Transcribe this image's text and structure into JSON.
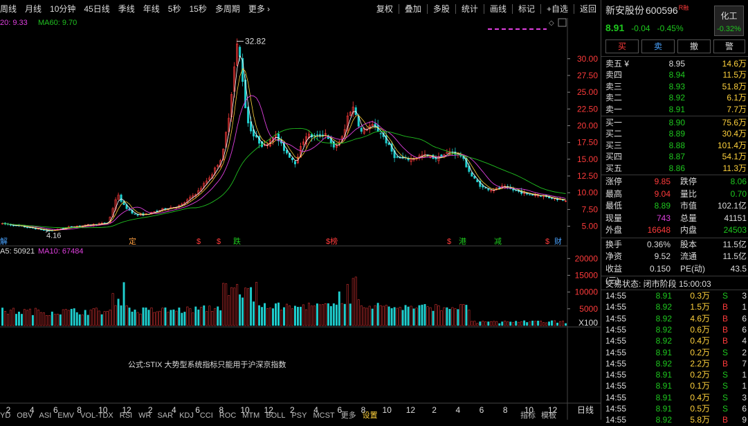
{
  "toolbar": {
    "left": [
      "周线",
      "月线",
      "10分钟",
      "45日线",
      "季线",
      "年线",
      "5秒",
      "15秒",
      "多周期",
      "更多 ›"
    ],
    "right": [
      "复权",
      "叠加",
      "多股",
      "统计",
      "画线",
      "标记",
      "+自选",
      "返回"
    ]
  },
  "chart": {
    "ma_label_main": {
      "ma20": "20: 9.33",
      "ma60": "MA60: 9.70"
    },
    "ma_label_vol": {
      "ma5": "A5: 50921",
      "ma10": "MA10: 67484"
    },
    "high_label": "32.82",
    "low_label": "4.16",
    "price_ticks": [
      "30.00",
      "27.50",
      "25.00",
      "22.50",
      "20.00",
      "17.50",
      "15.00",
      "12.50",
      "10.00",
      "7.50",
      "5.00"
    ],
    "vol_ticks": [
      "20000",
      "15000",
      "10000",
      "5000",
      "X100"
    ],
    "x_ticks": [
      "2",
      "4",
      "6",
      "8",
      "10",
      "12",
      "2",
      "4",
      "6",
      "8",
      "10",
      "12",
      "2",
      "4",
      "6",
      "8",
      "10",
      "12",
      "2",
      "4",
      "6",
      "8",
      "10",
      "12"
    ],
    "x_unit": "日线",
    "events": [
      "定",
      "$",
      "$",
      "跌",
      "$榜",
      "$",
      "港",
      "减",
      "$",
      "财",
      "解"
    ],
    "formula": "公式:STIX 大势型系统指标只能用于沪深京指数",
    "colors": {
      "up": "#ff3b3b",
      "down": "#20d0d0",
      "ma5": "#ffffff",
      "ma10": "#ffd23c",
      "ma20": "#e040e0",
      "ma60": "#20c020"
    }
  },
  "bottom_tabs": [
    "YD",
    "OBV",
    "ASI",
    "EMV",
    "VOL-TDX",
    "RSI",
    "WR",
    "SAR",
    "KDJ",
    "CCI",
    "ROC",
    "MTM",
    "BOLL",
    "PSY",
    "MCST",
    "更多",
    "设置"
  ],
  "bottom_right": [
    "指标",
    "模板"
  ],
  "stock": {
    "name": "新安股份",
    "code": "600596",
    "tag": "R",
    "tag2": "融",
    "sector": "化工",
    "sector_pct": "-0.32%",
    "price": "8.91",
    "change": "-0.04",
    "pct": "-0.45%"
  },
  "actions": [
    "买",
    "卖",
    "撤",
    "警"
  ],
  "asks": [
    {
      "label": "卖五 ¥",
      "price": "8.95",
      "vol": "14.6万"
    },
    {
      "label": "卖四",
      "price": "8.94",
      "vol": "11.5万"
    },
    {
      "label": "卖三",
      "price": "8.93",
      "vol": "51.8万"
    },
    {
      "label": "卖二",
      "price": "8.92",
      "vol": "6.1万"
    },
    {
      "label": "卖一",
      "price": "8.91",
      "vol": "7.7万"
    }
  ],
  "bids": [
    {
      "label": "买一",
      "price": "8.90",
      "vol": "75.6万"
    },
    {
      "label": "买二",
      "price": "8.89",
      "vol": "30.4万"
    },
    {
      "label": "买三",
      "price": "8.88",
      "vol": "101.4万"
    },
    {
      "label": "买四",
      "price": "8.87",
      "vol": "54.1万"
    },
    {
      "label": "买五",
      "price": "8.86",
      "vol": "11.3万"
    }
  ],
  "stats": [
    {
      "l1": "涨停",
      "v1": "9.85",
      "c1": "red",
      "l2": "跌停",
      "v2": "8.06",
      "c2": "grn"
    },
    {
      "l1": "最高",
      "v1": "9.04",
      "c1": "red",
      "l2": "量比",
      "v2": "0.70",
      "c2": "grn"
    },
    {
      "l1": "最低",
      "v1": "8.89",
      "c1": "grn",
      "l2": "市值",
      "v2": "102.1亿",
      "c2": "wht"
    },
    {
      "l1": "现量",
      "v1": "743",
      "c1": "mag",
      "l2": "总量",
      "v2": "41151",
      "c2": "wht"
    },
    {
      "l1": "外盘",
      "v1": "16648",
      "c1": "red",
      "l2": "内盘",
      "v2": "24503",
      "c2": "grn"
    }
  ],
  "stats2": [
    {
      "l1": "换手",
      "v1": "0.36%",
      "l2": "股本",
      "v2": "11.5亿"
    },
    {
      "l1": "净资",
      "v1": "9.52",
      "l2": "流通",
      "v2": "11.5亿"
    },
    {
      "l1": "收益(三)",
      "v1": "0.150",
      "l2": "PE(动)",
      "v2": "43.5"
    }
  ],
  "trade_status": "交易状态: 闭市阶段 15:00:03",
  "ticks": [
    {
      "t": "14:55",
      "p": "8.91",
      "v": "0.3万",
      "s": "S",
      "n": "3"
    },
    {
      "t": "14:55",
      "p": "8.92",
      "v": "1.5万",
      "s": "B",
      "n": "1"
    },
    {
      "t": "14:55",
      "p": "8.92",
      "v": "4.6万",
      "s": "B",
      "n": "6"
    },
    {
      "t": "14:55",
      "p": "8.92",
      "v": "0.6万",
      "s": "B",
      "n": "6"
    },
    {
      "t": "14:55",
      "p": "8.92",
      "v": "0.4万",
      "s": "B",
      "n": "4"
    },
    {
      "t": "14:55",
      "p": "8.91",
      "v": "0.2万",
      "s": "S",
      "n": "2"
    },
    {
      "t": "14:55",
      "p": "8.92",
      "v": "2.2万",
      "s": "B",
      "n": "7"
    },
    {
      "t": "14:55",
      "p": "8.91",
      "v": "0.2万",
      "s": "S",
      "n": "1"
    },
    {
      "t": "14:55",
      "p": "8.91",
      "v": "0.1万",
      "s": "S",
      "n": "1"
    },
    {
      "t": "14:55",
      "p": "8.91",
      "v": "0.4万",
      "s": "S",
      "n": "3"
    },
    {
      "t": "14:55",
      "p": "8.91",
      "v": "0.5万",
      "s": "S",
      "n": "6"
    },
    {
      "t": "14:55",
      "p": "8.92",
      "v": "5.8万",
      "s": "B",
      "n": "9"
    }
  ]
}
